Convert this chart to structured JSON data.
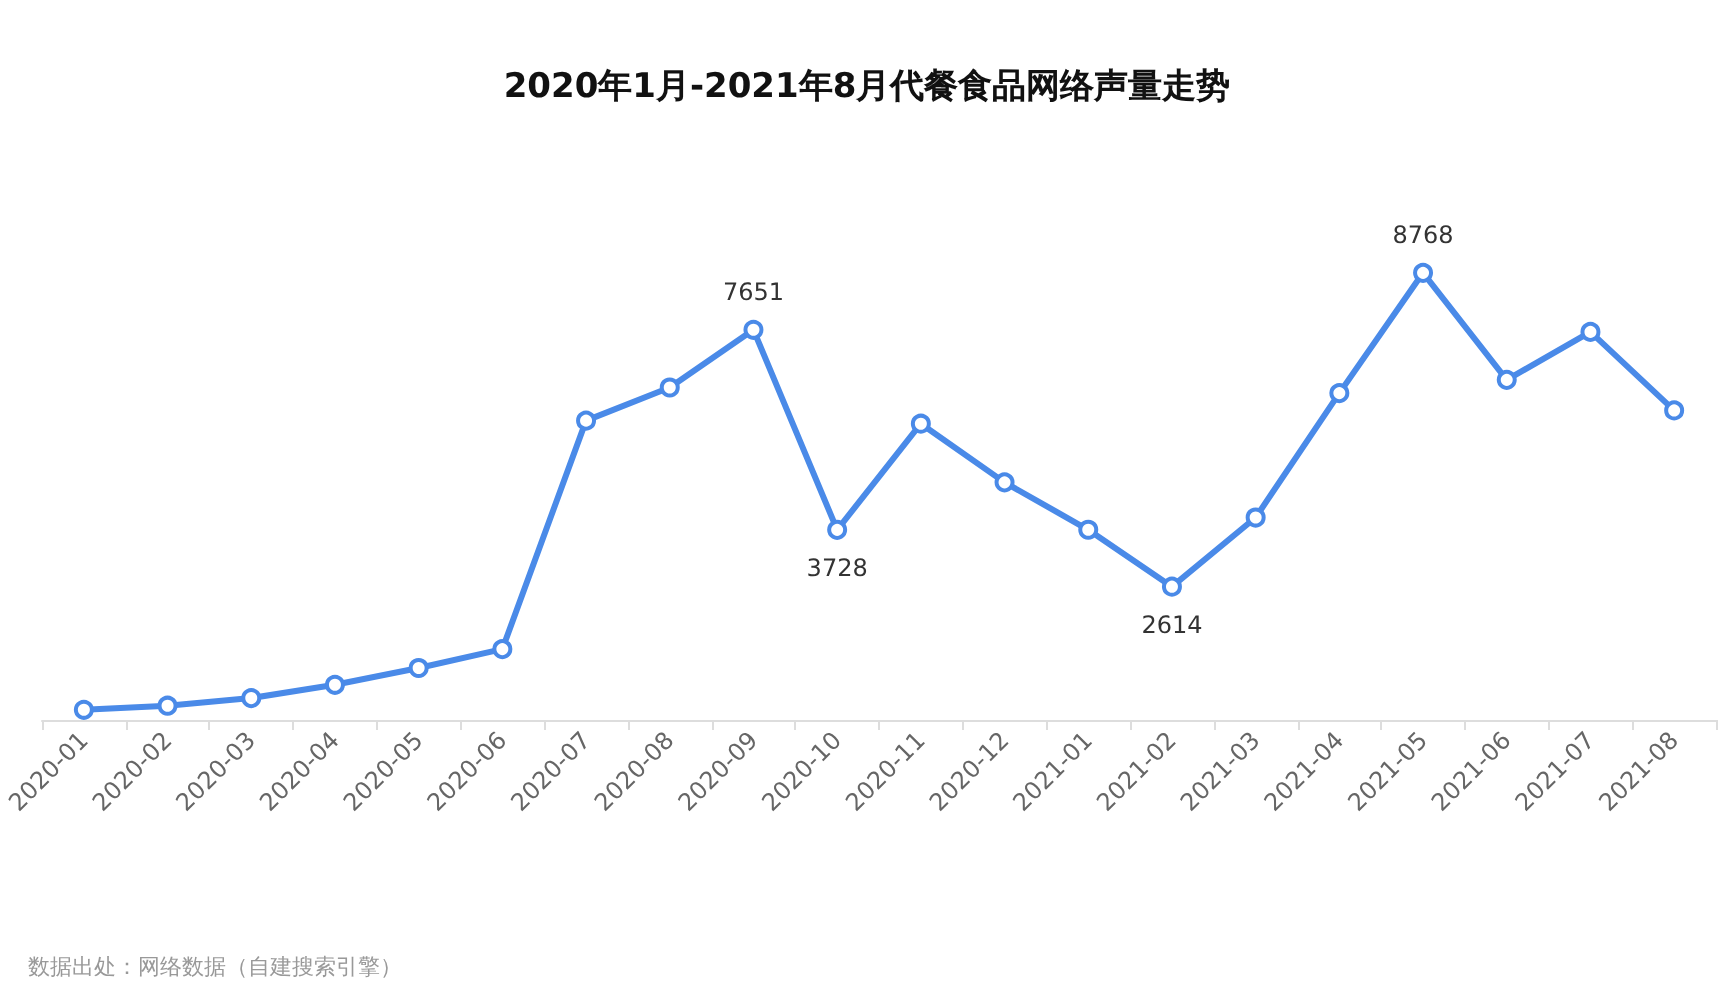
{
  "chart_data": {
    "type": "line",
    "title": "2020年1月-2021年8月代餐食品网络声量走势",
    "categories": [
      "2020-01",
      "2020-02",
      "2020-03",
      "2020-04",
      "2020-05",
      "2020-06",
      "2020-07",
      "2020-08",
      "2020-09",
      "2020-10",
      "2020-11",
      "2020-12",
      "2021-01",
      "2021-02",
      "2021-03",
      "2021-04",
      "2021-05",
      "2021-06",
      "2021-07",
      "2021-08"
    ],
    "series": [
      {
        "color": "#4a8ae8",
        "values": [
          200,
          280,
          430,
          690,
          1020,
          1390,
          5870,
          6520,
          7651,
          3728,
          5810,
          4660,
          3730,
          2614,
          3970,
          6410,
          8768,
          6670,
          7610,
          6070
        ],
        "value_labels": [
          null,
          null,
          null,
          null,
          null,
          null,
          null,
          null,
          "7651",
          "3728",
          null,
          null,
          null,
          "2614",
          null,
          null,
          "8768",
          null,
          null,
          null
        ]
      }
    ],
    "marker": "circle",
    "line_style": "solid",
    "annotations": [
      "数据出处：网络数据（自建搜索引擎）"
    ]
  }
}
